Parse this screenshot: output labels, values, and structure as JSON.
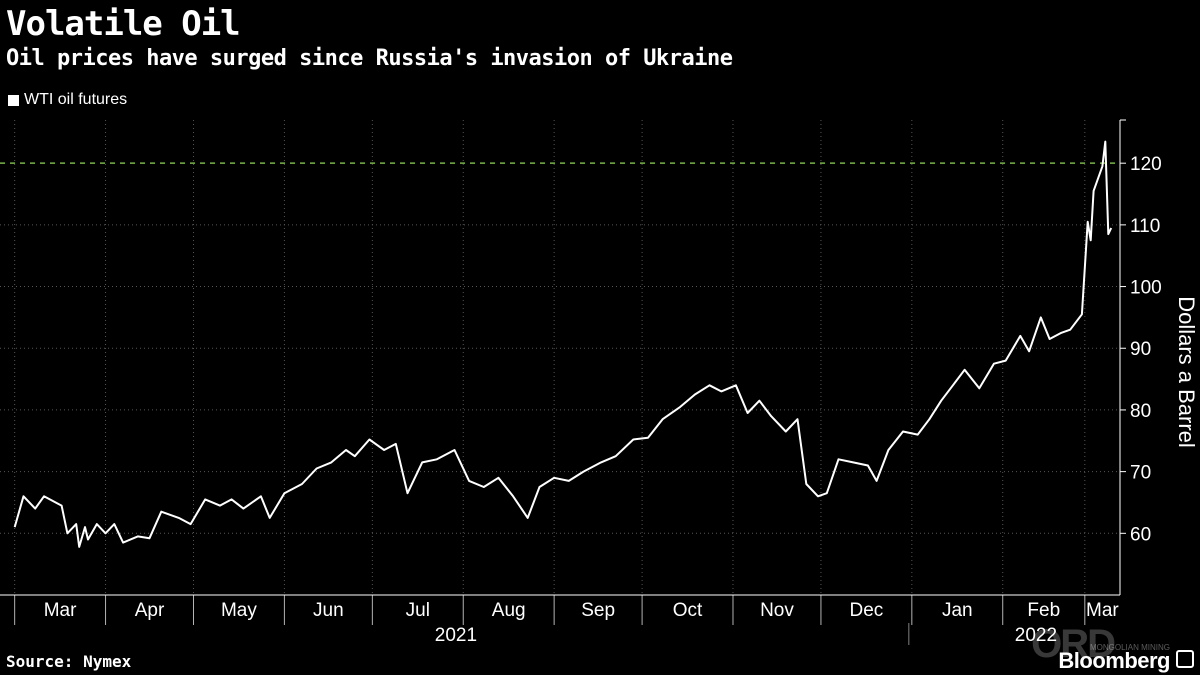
{
  "header": {
    "title": "Volatile Oil",
    "subtitle": "Oil prices have surged since Russia's invasion of Ukraine"
  },
  "legend": {
    "label": "WTI oil futures"
  },
  "footer": {
    "source": "Source: Nymex",
    "brand": "Bloomberg",
    "watermark": "ORD",
    "watermark_sub": "MONGOLIAN MINING"
  },
  "chart_data": {
    "type": "line",
    "title": "Volatile Oil",
    "subtitle": "Oil prices have surged since Russia's invasion of Ukraine",
    "ylabel": "Dollars a Barrel",
    "ylim": [
      50,
      127
    ],
    "yticks": [
      60,
      70,
      80,
      90,
      100,
      110,
      120
    ],
    "reference_line": {
      "y": 120,
      "style": "dashed",
      "color": "#7bb24e"
    },
    "grid": true,
    "legend_position": "top-left",
    "x_axis": {
      "months": [
        "Mar",
        "Apr",
        "May",
        "Jun",
        "Jul",
        "Aug",
        "Sep",
        "Oct",
        "Nov",
        "Dec",
        "Jan",
        "Feb",
        "Mar"
      ],
      "years": [
        "2021",
        "2022"
      ]
    },
    "colors": {
      "line": "#ffffff",
      "grid": "#555555",
      "reference": "#7bb24e"
    },
    "series": [
      {
        "name": "WTI oil futures",
        "points": [
          [
            "2021-03-01",
            61.0
          ],
          [
            "2021-03-04",
            66.0
          ],
          [
            "2021-03-08",
            64.0
          ],
          [
            "2021-03-11",
            66.0
          ],
          [
            "2021-03-15",
            65.0
          ],
          [
            "2021-03-17",
            64.5
          ],
          [
            "2021-03-19",
            60.0
          ],
          [
            "2021-03-22",
            61.5
          ],
          [
            "2021-03-23",
            57.8
          ],
          [
            "2021-03-25",
            61.0
          ],
          [
            "2021-03-26",
            59.0
          ],
          [
            "2021-03-29",
            61.5
          ],
          [
            "2021-04-01",
            60.0
          ],
          [
            "2021-04-04",
            61.5
          ],
          [
            "2021-04-07",
            58.5
          ],
          [
            "2021-04-12",
            59.5
          ],
          [
            "2021-04-16",
            59.2
          ],
          [
            "2021-04-20",
            63.5
          ],
          [
            "2021-04-26",
            62.5
          ],
          [
            "2021-04-30",
            61.5
          ],
          [
            "2021-05-05",
            65.5
          ],
          [
            "2021-05-10",
            64.5
          ],
          [
            "2021-05-14",
            65.5
          ],
          [
            "2021-05-18",
            64.0
          ],
          [
            "2021-05-24",
            66.0
          ],
          [
            "2021-05-27",
            62.5
          ],
          [
            "2021-06-01",
            66.5
          ],
          [
            "2021-06-07",
            68.0
          ],
          [
            "2021-06-12",
            70.5
          ],
          [
            "2021-06-17",
            71.5
          ],
          [
            "2021-06-22",
            73.5
          ],
          [
            "2021-06-25",
            72.5
          ],
          [
            "2021-06-30",
            75.2
          ],
          [
            "2021-07-05",
            73.5
          ],
          [
            "2021-07-09",
            74.5
          ],
          [
            "2021-07-13",
            66.5
          ],
          [
            "2021-07-18",
            71.5
          ],
          [
            "2021-07-23",
            72.0
          ],
          [
            "2021-07-29",
            73.5
          ],
          [
            "2021-08-03",
            68.5
          ],
          [
            "2021-08-08",
            67.5
          ],
          [
            "2021-08-13",
            69.0
          ],
          [
            "2021-08-18",
            66.0
          ],
          [
            "2021-08-23",
            62.5
          ],
          [
            "2021-08-27",
            67.5
          ],
          [
            "2021-09-01",
            69.0
          ],
          [
            "2021-09-06",
            68.5
          ],
          [
            "2021-09-11",
            70.0
          ],
          [
            "2021-09-17",
            71.5
          ],
          [
            "2021-09-22",
            72.5
          ],
          [
            "2021-09-28",
            75.2
          ],
          [
            "2021-10-03",
            75.5
          ],
          [
            "2021-10-08",
            78.5
          ],
          [
            "2021-10-14",
            80.5
          ],
          [
            "2021-10-19",
            82.5
          ],
          [
            "2021-10-24",
            84.0
          ],
          [
            "2021-10-28",
            83.0
          ],
          [
            "2021-11-02",
            84.0
          ],
          [
            "2021-11-06",
            79.5
          ],
          [
            "2021-11-10",
            81.5
          ],
          [
            "2021-11-14",
            79.0
          ],
          [
            "2021-11-19",
            76.5
          ],
          [
            "2021-11-23",
            78.5
          ],
          [
            "2021-11-26",
            68.0
          ],
          [
            "2021-11-30",
            66.0
          ],
          [
            "2021-12-03",
            66.5
          ],
          [
            "2021-12-07",
            72.0
          ],
          [
            "2021-12-12",
            71.5
          ],
          [
            "2021-12-17",
            71.0
          ],
          [
            "2021-12-20",
            68.5
          ],
          [
            "2021-12-24",
            73.5
          ],
          [
            "2021-12-29",
            76.5
          ],
          [
            "2022-01-03",
            76.0
          ],
          [
            "2022-01-07",
            78.5
          ],
          [
            "2022-01-11",
            81.5
          ],
          [
            "2022-01-15",
            84.0
          ],
          [
            "2022-01-19",
            86.5
          ],
          [
            "2022-01-24",
            83.5
          ],
          [
            "2022-01-29",
            87.5
          ],
          [
            "2022-02-02",
            88.0
          ],
          [
            "2022-02-07",
            92.0
          ],
          [
            "2022-02-10",
            89.5
          ],
          [
            "2022-02-14",
            95.0
          ],
          [
            "2022-02-17",
            91.5
          ],
          [
            "2022-02-21",
            92.5
          ],
          [
            "2022-02-24",
            93.0
          ],
          [
            "2022-02-28",
            95.5
          ],
          [
            "2022-03-02",
            110.5
          ],
          [
            "2022-03-03",
            107.5
          ],
          [
            "2022-03-04",
            115.5
          ],
          [
            "2022-03-07",
            119.5
          ],
          [
            "2022-03-08",
            123.5
          ],
          [
            "2022-03-09",
            108.5
          ],
          [
            "2022-03-10",
            109.5
          ]
        ]
      }
    ]
  }
}
